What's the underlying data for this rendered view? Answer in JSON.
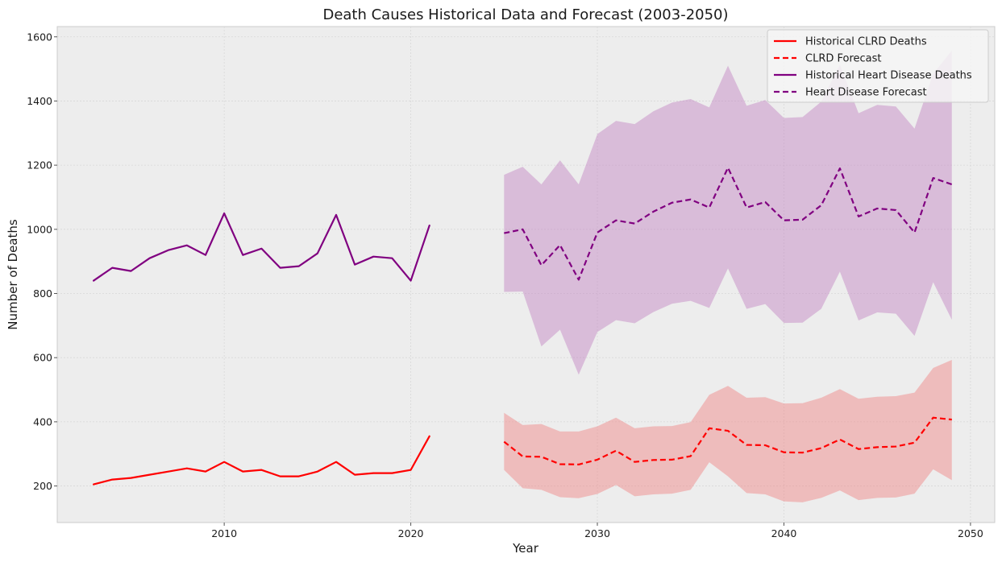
{
  "chart_data": {
    "type": "line",
    "title": "Death Causes Historical Data and Forecast (2003-2050)",
    "xlabel": "Year",
    "ylabel": "Number of Deaths",
    "xlim": [
      2001.05,
      2051.3
    ],
    "ylim": [
      86,
      1632
    ],
    "xticks": [
      2010,
      2020,
      2030,
      2040,
      2050
    ],
    "yticks": [
      200,
      400,
      600,
      800,
      1000,
      1200,
      1400,
      1600
    ],
    "grid": true,
    "legend_position": "top-right",
    "series": [
      {
        "name": "Historical CLRD Deaths",
        "color": "#ff0000",
        "style": "solid",
        "x": [
          2003,
          2004,
          2005,
          2006,
          2007,
          2008,
          2009,
          2010,
          2011,
          2012,
          2013,
          2014,
          2015,
          2016,
          2017,
          2018,
          2019,
          2020,
          2021
        ],
        "values": [
          205,
          220,
          225,
          235,
          245,
          255,
          245,
          275,
          245,
          250,
          230,
          230,
          245,
          275,
          235,
          240,
          240,
          250,
          355
        ]
      },
      {
        "name": "CLRD Forecast",
        "color": "#ff0000",
        "style": "dashed",
        "x": [
          2025,
          2026,
          2027,
          2028,
          2029,
          2030,
          2031,
          2032,
          2033,
          2034,
          2035,
          2036,
          2037,
          2038,
          2039,
          2040,
          2041,
          2042,
          2043,
          2044,
          2045,
          2046,
          2047,
          2048,
          2049
        ],
        "values": [
          338,
          292,
          291,
          268,
          267,
          282,
          310,
          275,
          281,
          282,
          293,
          380,
          372,
          328,
          327,
          305,
          304,
          318,
          345,
          315,
          321,
          323,
          335,
          413,
          407
        ],
        "lower": [
          250,
          193,
          188,
          165,
          162,
          175,
          203,
          168,
          174,
          176,
          188,
          274,
          230,
          178,
          174,
          152,
          149,
          163,
          186,
          156,
          163,
          164,
          176,
          252,
          218
        ],
        "upper": [
          428,
          390,
          393,
          370,
          370,
          386,
          413,
          380,
          386,
          387,
          399,
          484,
          512,
          475,
          477,
          457,
          458,
          475,
          502,
          472,
          478,
          480,
          491,
          568,
          593
        ],
        "band_color": "#f08080"
      },
      {
        "name": "Historical Heart Disease Deaths",
        "color": "#800080",
        "style": "solid",
        "x": [
          2003,
          2004,
          2005,
          2006,
          2007,
          2008,
          2009,
          2010,
          2011,
          2012,
          2013,
          2014,
          2015,
          2016,
          2017,
          2018,
          2019,
          2020,
          2021
        ],
        "values": [
          840,
          880,
          870,
          910,
          935,
          950,
          920,
          1050,
          920,
          940,
          880,
          885,
          925,
          1045,
          890,
          915,
          910,
          840,
          1012
        ]
      },
      {
        "name": "Heart Disease Forecast",
        "color": "#800080",
        "style": "dashed",
        "x": [
          2025,
          2026,
          2027,
          2028,
          2029,
          2030,
          2031,
          2032,
          2033,
          2034,
          2035,
          2036,
          2037,
          2038,
          2039,
          2040,
          2041,
          2042,
          2043,
          2044,
          2045,
          2046,
          2047,
          2048,
          2049
        ],
        "values": [
          988,
          1000,
          888,
          951,
          843,
          990,
          1028,
          1018,
          1055,
          1083,
          1093,
          1068,
          1192,
          1068,
          1085,
          1028,
          1030,
          1075,
          1190,
          1040,
          1065,
          1060,
          990,
          1160,
          1140
        ],
        "lower": [
          805,
          806,
          635,
          687,
          547,
          680,
          717,
          707,
          742,
          768,
          777,
          755,
          878,
          752,
          767,
          708,
          709,
          752,
          868,
          716,
          741,
          737,
          668,
          835,
          718
        ],
        "upper": [
          1170,
          1195,
          1140,
          1215,
          1140,
          1297,
          1338,
          1328,
          1368,
          1395,
          1406,
          1380,
          1510,
          1385,
          1403,
          1347,
          1350,
          1398,
          1513,
          1362,
          1388,
          1383,
          1314,
          1485,
          1557
        ],
        "band_color": "#c080c0"
      }
    ]
  }
}
